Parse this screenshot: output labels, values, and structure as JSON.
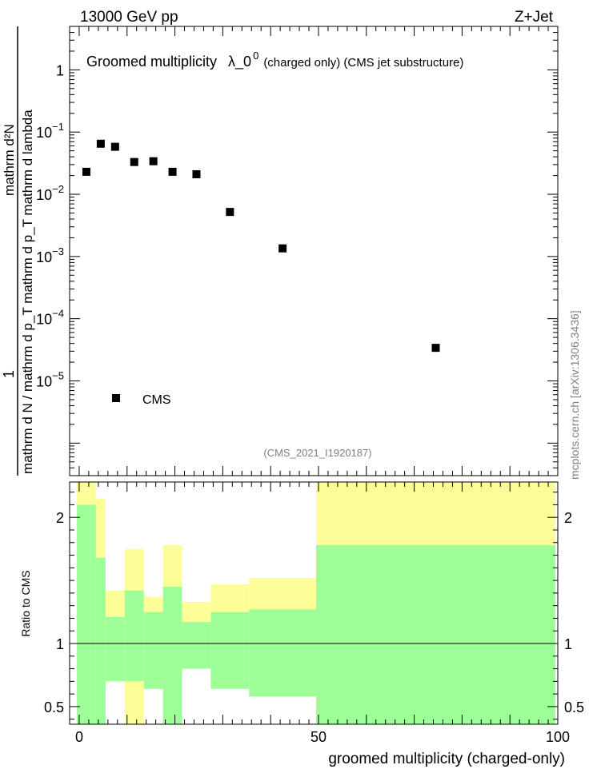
{
  "header": {
    "left": "13000 GeV pp",
    "right": "Z+Jet"
  },
  "side_label": "mcplots.cern.ch [arXiv:1306.3436]",
  "colors": {
    "marker": "#000000",
    "band_green": "#9efe98",
    "band_yellow": "#fefe98",
    "watermark": "#808080"
  },
  "chart_data": {
    "type": "scatter",
    "title": "Groomed multiplicity",
    "title_symbol": "λ_0",
    "title_symbol_sup": "0",
    "title_suffix": "(charged only) (CMS jet substructure)",
    "analysis_id": "(CMS_2021_I1920187)",
    "legend": "CMS",
    "legend_position": "bottom-left",
    "ylabel_main": {
      "numerator": "1",
      "denominator": "mathrm d N / mathrm d p_T mathrm d p_T mathrm d lambda",
      "right": "mathrm d²N"
    },
    "ylabel_ratio": "Ratio to CMS",
    "xlabel": "groomed multiplicity (charged-only)",
    "xlim": [
      -2,
      100
    ],
    "main": {
      "yscale": "log",
      "ylim": [
        3e-07,
        5
      ],
      "ytick_labels": [
        {
          "value": 1,
          "base": "1",
          "exp": ""
        },
        {
          "value": 0.1,
          "base": "10",
          "exp": "−1"
        },
        {
          "value": 0.01,
          "base": "10",
          "exp": "−2"
        },
        {
          "value": 0.001,
          "base": "10",
          "exp": "−3"
        },
        {
          "value": 0.0001,
          "base": "10",
          "exp": "−4"
        },
        {
          "value": 1e-05,
          "base": "10",
          "exp": "−5"
        }
      ],
      "series": [
        {
          "name": "CMS",
          "points": [
            {
              "x": 1.5,
              "y": 0.023
            },
            {
              "x": 4.5,
              "y": 0.065
            },
            {
              "x": 7.5,
              "y": 0.058
            },
            {
              "x": 11.5,
              "y": 0.033
            },
            {
              "x": 15.5,
              "y": 0.034
            },
            {
              "x": 19.5,
              "y": 0.023
            },
            {
              "x": 24.5,
              "y": 0.021
            },
            {
              "x": 31.5,
              "y": 0.0052
            },
            {
              "x": 42.5,
              "y": 0.00135
            },
            {
              "x": 74.5,
              "y": 3.4e-05
            }
          ]
        }
      ]
    },
    "ratio": {
      "ylim": [
        0.36,
        2.28
      ],
      "reference": 1,
      "ytick_labels": [
        {
          "value": 0.5,
          "label": "0.5"
        },
        {
          "value": 1,
          "label": "1"
        },
        {
          "value": 2,
          "label": "2"
        }
      ],
      "xtick_labels": [
        {
          "value": 0,
          "label": "0"
        },
        {
          "value": 50,
          "label": "50"
        },
        {
          "value": 100,
          "label": "100"
        }
      ],
      "bins": [
        {
          "x0": -0.5,
          "x1": 3.5,
          "g_lo": 0.36,
          "g_hi": 2.1,
          "y_lo": 0.36,
          "y_hi": 2.28
        },
        {
          "x0": 3.5,
          "x1": 5.5,
          "g_lo": 0.36,
          "g_hi": 1.68,
          "y_lo": 0.36,
          "y_hi": 2.15
        },
        {
          "x0": 5.5,
          "x1": 9.5,
          "g_lo": 0.7,
          "g_hi": 1.21,
          "y_lo": 0.86,
          "y_hi": 1.42
        },
        {
          "x0": 9.5,
          "x1": 13.5,
          "g_lo": 0.7,
          "g_hi": 1.42,
          "y_lo": 0.36,
          "y_hi": 1.75
        },
        {
          "x0": 13.5,
          "x1": 17.5,
          "g_lo": 0.64,
          "g_hi": 1.25,
          "y_lo": 0.84,
          "y_hi": 1.37
        },
        {
          "x0": 17.5,
          "x1": 21.5,
          "g_lo": 0.36,
          "g_hi": 1.45,
          "y_lo": 0.69,
          "y_hi": 1.78
        },
        {
          "x0": 21.5,
          "x1": 27.5,
          "g_lo": 0.8,
          "g_hi": 1.17,
          "y_lo": 0.88,
          "y_hi": 1.33
        },
        {
          "x0": 27.5,
          "x1": 35.5,
          "g_lo": 0.64,
          "g_hi": 1.25,
          "y_lo": 0.84,
          "y_hi": 1.47
        },
        {
          "x0": 35.5,
          "x1": 49.5,
          "g_lo": 0.58,
          "g_hi": 1.27,
          "y_lo": 0.81,
          "y_hi": 1.52
        },
        {
          "x0": 49.5,
          "x1": 99.5,
          "g_lo": 0.36,
          "g_hi": 1.78,
          "y_lo": 0.36,
          "y_hi": 2.28
        }
      ]
    }
  }
}
